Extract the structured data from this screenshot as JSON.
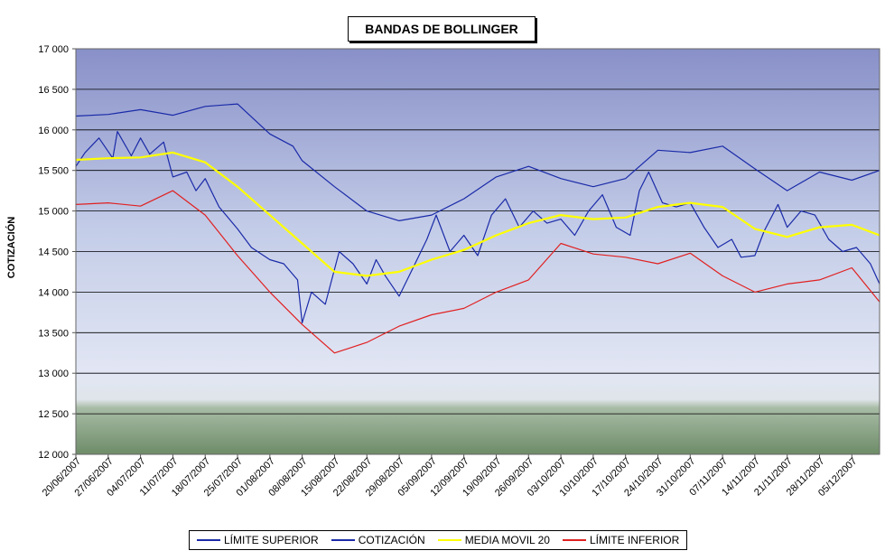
{
  "chart_data": {
    "type": "line",
    "title": "BANDAS DE BOLLINGER",
    "xlabel": "",
    "ylabel": "COTIZACIÓN",
    "ylim": [
      12000,
      17000
    ],
    "y_ticks": [
      "12 000",
      "12 500",
      "13 000",
      "13 500",
      "14 000",
      "14 500",
      "15 000",
      "15 500",
      "16 000",
      "16 500",
      "17 000"
    ],
    "x_ticks": [
      "20/06/2007",
      "27/06/2007",
      "04/07/2007",
      "11/07/2007",
      "18/07/2007",
      "25/07/2007",
      "01/08/2007",
      "08/08/2007",
      "15/08/2007",
      "22/08/2007",
      "29/08/2007",
      "05/09/2007",
      "12/09/2007",
      "19/09/2007",
      "26/09/2007",
      "03/10/2007",
      "10/10/2007",
      "17/10/2007",
      "24/10/2007",
      "31/10/2007",
      "07/11/2007",
      "14/11/2007",
      "21/11/2007",
      "28/11/2007",
      "05/12/2007"
    ],
    "x_range": [
      "20/06/2007",
      "11/12/2007"
    ],
    "grid": true,
    "legend_position": "bottom",
    "series": [
      {
        "name": "LÍMITE SUPERIOR",
        "color": "#1a2aa8",
        "values": [
          [
            "20/06/2007",
            16170
          ],
          [
            "27/06/2007",
            16190
          ],
          [
            "04/07/2007",
            16250
          ],
          [
            "11/07/2007",
            16180
          ],
          [
            "18/07/2007",
            16290
          ],
          [
            "25/07/2007",
            16320
          ],
          [
            "01/08/2007",
            15950
          ],
          [
            "06/08/2007",
            15800
          ],
          [
            "08/08/2007",
            15620
          ],
          [
            "15/08/2007",
            15300
          ],
          [
            "22/08/2007",
            15000
          ],
          [
            "29/08/2007",
            14880
          ],
          [
            "05/09/2007",
            14950
          ],
          [
            "12/09/2007",
            15150
          ],
          [
            "19/09/2007",
            15420
          ],
          [
            "26/09/2007",
            15550
          ],
          [
            "03/10/2007",
            15400
          ],
          [
            "10/10/2007",
            15300
          ],
          [
            "17/10/2007",
            15400
          ],
          [
            "24/10/2007",
            15750
          ],
          [
            "31/10/2007",
            15720
          ],
          [
            "07/11/2007",
            15800
          ],
          [
            "14/11/2007",
            15520
          ],
          [
            "21/11/2007",
            15250
          ],
          [
            "28/11/2007",
            15480
          ],
          [
            "05/12/2007",
            15380
          ],
          [
            "11/12/2007",
            15500
          ]
        ]
      },
      {
        "name": "COTIZACIÓN",
        "color": "#1a2aa8",
        "values": [
          [
            "20/06/2007",
            15550
          ],
          [
            "22/06/2007",
            15720
          ],
          [
            "25/06/2007",
            15900
          ],
          [
            "28/06/2007",
            15650
          ],
          [
            "29/06/2007",
            15980
          ],
          [
            "02/07/2007",
            15680
          ],
          [
            "04/07/2007",
            15900
          ],
          [
            "06/07/2007",
            15700
          ],
          [
            "09/07/2007",
            15850
          ],
          [
            "11/07/2007",
            15420
          ],
          [
            "14/07/2007",
            15480
          ],
          [
            "16/07/2007",
            15250
          ],
          [
            "18/07/2007",
            15400
          ],
          [
            "21/07/2007",
            15050
          ],
          [
            "25/07/2007",
            14780
          ],
          [
            "28/07/2007",
            14550
          ],
          [
            "01/08/2007",
            14400
          ],
          [
            "04/08/2007",
            14350
          ],
          [
            "07/08/2007",
            14150
          ],
          [
            "08/08/2007",
            13620
          ],
          [
            "10/08/2007",
            14000
          ],
          [
            "13/08/2007",
            13850
          ],
          [
            "16/08/2007",
            14500
          ],
          [
            "19/08/2007",
            14350
          ],
          [
            "22/08/2007",
            14100
          ],
          [
            "24/08/2007",
            14400
          ],
          [
            "26/08/2007",
            14200
          ],
          [
            "29/08/2007",
            13950
          ],
          [
            "01/09/2007",
            14300
          ],
          [
            "04/09/2007",
            14650
          ],
          [
            "06/09/2007",
            14950
          ],
          [
            "09/09/2007",
            14500
          ],
          [
            "12/09/2007",
            14700
          ],
          [
            "15/09/2007",
            14450
          ],
          [
            "18/09/2007",
            14950
          ],
          [
            "21/09/2007",
            15150
          ],
          [
            "24/09/2007",
            14800
          ],
          [
            "27/09/2007",
            15000
          ],
          [
            "30/09/2007",
            14850
          ],
          [
            "03/10/2007",
            14900
          ],
          [
            "06/10/2007",
            14700
          ],
          [
            "09/10/2007",
            15000
          ],
          [
            "12/10/2007",
            15200
          ],
          [
            "15/10/2007",
            14800
          ],
          [
            "18/10/2007",
            14700
          ],
          [
            "20/10/2007",
            15250
          ],
          [
            "22/10/2007",
            15480
          ],
          [
            "25/10/2007",
            15100
          ],
          [
            "28/10/2007",
            15050
          ],
          [
            "31/10/2007",
            15100
          ],
          [
            "03/11/2007",
            14800
          ],
          [
            "06/11/2007",
            14550
          ],
          [
            "09/11/2007",
            14650
          ],
          [
            "11/11/2007",
            14430
          ],
          [
            "14/11/2007",
            14450
          ],
          [
            "16/11/2007",
            14750
          ],
          [
            "19/11/2007",
            15080
          ],
          [
            "21/11/2007",
            14800
          ],
          [
            "24/11/2007",
            15000
          ],
          [
            "27/11/2007",
            14950
          ],
          [
            "30/11/2007",
            14650
          ],
          [
            "03/12/2007",
            14500
          ],
          [
            "06/12/2007",
            14550
          ],
          [
            "09/12/2007",
            14350
          ],
          [
            "11/12/2007",
            14100
          ]
        ]
      },
      {
        "name": "MEDIA MOVIL 20",
        "color": "#ffff00",
        "values": [
          [
            "20/06/2007",
            15630
          ],
          [
            "27/06/2007",
            15650
          ],
          [
            "04/07/2007",
            15660
          ],
          [
            "11/07/2007",
            15720
          ],
          [
            "18/07/2007",
            15600
          ],
          [
            "25/07/2007",
            15300
          ],
          [
            "01/08/2007",
            14950
          ],
          [
            "08/08/2007",
            14600
          ],
          [
            "15/08/2007",
            14250
          ],
          [
            "22/08/2007",
            14200
          ],
          [
            "29/08/2007",
            14250
          ],
          [
            "05/09/2007",
            14400
          ],
          [
            "12/09/2007",
            14520
          ],
          [
            "19/09/2007",
            14700
          ],
          [
            "26/09/2007",
            14850
          ],
          [
            "03/10/2007",
            14950
          ],
          [
            "10/10/2007",
            14900
          ],
          [
            "17/10/2007",
            14920
          ],
          [
            "24/10/2007",
            15050
          ],
          [
            "31/10/2007",
            15100
          ],
          [
            "07/11/2007",
            15050
          ],
          [
            "14/11/2007",
            14780
          ],
          [
            "21/11/2007",
            14680
          ],
          [
            "28/11/2007",
            14800
          ],
          [
            "05/12/2007",
            14830
          ],
          [
            "11/12/2007",
            14700
          ]
        ]
      },
      {
        "name": "LÍMITE INFERIOR",
        "color": "#e02020",
        "values": [
          [
            "20/06/2007",
            15080
          ],
          [
            "27/06/2007",
            15100
          ],
          [
            "04/07/2007",
            15060
          ],
          [
            "11/07/2007",
            15250
          ],
          [
            "18/07/2007",
            14950
          ],
          [
            "25/07/2007",
            14450
          ],
          [
            "01/08/2007",
            14000
          ],
          [
            "08/08/2007",
            13600
          ],
          [
            "15/08/2007",
            13250
          ],
          [
            "22/08/2007",
            13380
          ],
          [
            "29/08/2007",
            13580
          ],
          [
            "05/09/2007",
            13720
          ],
          [
            "12/09/2007",
            13800
          ],
          [
            "19/09/2007",
            14000
          ],
          [
            "26/09/2007",
            14150
          ],
          [
            "03/10/2007",
            14600
          ],
          [
            "10/10/2007",
            14470
          ],
          [
            "17/10/2007",
            14430
          ],
          [
            "24/10/2007",
            14350
          ],
          [
            "31/10/2007",
            14480
          ],
          [
            "07/11/2007",
            14200
          ],
          [
            "14/11/2007",
            14000
          ],
          [
            "21/11/2007",
            14100
          ],
          [
            "28/11/2007",
            14150
          ],
          [
            "05/12/2007",
            14300
          ],
          [
            "11/12/2007",
            13880
          ]
        ]
      }
    ]
  }
}
